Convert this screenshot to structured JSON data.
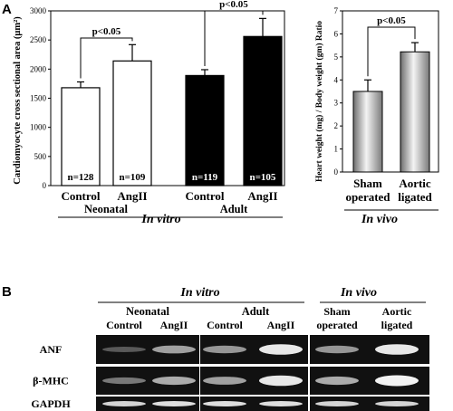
{
  "panels": {
    "a": "A",
    "b": "B"
  },
  "chart_data": [
    {
      "type": "bar",
      "ylabel": "Cardiomyocyte cross sectional area (μm²)",
      "ylim": [
        0,
        3000
      ],
      "yticks": [
        0,
        500,
        1000,
        1500,
        2000,
        2500,
        3000
      ],
      "categories": [
        "Control",
        "AngII",
        "Control",
        "AngII"
      ],
      "values": [
        1680,
        2140,
        1890,
        2560
      ],
      "errors": [
        100,
        280,
        100,
        310
      ],
      "fills": [
        "#ffffff",
        "#ffffff",
        "#000000",
        "#000000"
      ],
      "n_labels": [
        "n=128",
        "n=109",
        "n=119",
        "n=105"
      ],
      "groups": [
        "Neonatal",
        "Adult"
      ],
      "group_title": "In vitro",
      "significance": [
        "p<0.05",
        "p<0.05"
      ]
    },
    {
      "type": "bar",
      "ylabel": "Heart weight (mg) / Body weight (gm) Ratio",
      "ylim": [
        0,
        7
      ],
      "yticks": [
        0,
        1,
        2,
        3,
        4,
        5,
        6,
        7
      ],
      "categories_line1": [
        "Sham",
        "Aortic"
      ],
      "categories_line2": [
        "operated",
        "ligated"
      ],
      "values": [
        3.5,
        5.22
      ],
      "errors": [
        0.5,
        0.4
      ],
      "group_title": "In vivo",
      "significance": [
        "p<0.05"
      ]
    }
  ],
  "blot": {
    "in_vitro": "In vitro",
    "in_vivo": "In vivo",
    "groups": [
      "Neonatal",
      "Adult"
    ],
    "lanes_line1": [
      "Control",
      "AngII",
      "Control",
      "AngII",
      "Sham",
      "Aortic"
    ],
    "lanes_line2": [
      "",
      "",
      "",
      "",
      "operated",
      "ligated"
    ],
    "genes": [
      "ANF",
      "β-MHC",
      "GAPDH"
    ],
    "band_intensity": [
      [
        0.25,
        0.6,
        0.55,
        0.95,
        0.55,
        0.95
      ],
      [
        0.4,
        0.65,
        0.6,
        0.95,
        0.65,
        1.0
      ],
      [
        0.85,
        0.9,
        0.9,
        0.9,
        0.85,
        0.85
      ]
    ]
  }
}
